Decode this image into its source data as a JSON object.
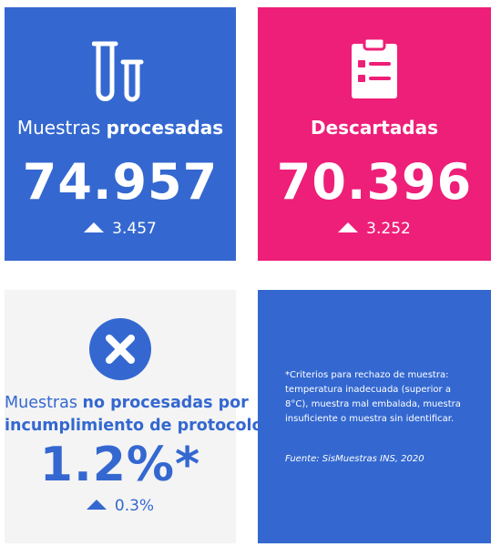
{
  "cards": {
    "processed": {
      "title_prefix": "Muestras ",
      "title_bold": "procesadas",
      "value": "74.957",
      "delta": "3.457",
      "icon": "test-tubes-icon",
      "color": "#3468d0"
    },
    "discarded": {
      "title_bold": "Descartadas",
      "value": "70.396",
      "delta": "3.252",
      "icon": "clipboard-checklist-icon",
      "color": "#ee1f78"
    },
    "not_processed": {
      "line1_prefix": "Muestras ",
      "line1_bold": "no procesadas por",
      "line2_bold": "incumplimiento de protocolo",
      "value": "1.2%*",
      "delta": "0.3%",
      "icon": "x-circle-icon",
      "color": "#3468d0"
    },
    "notes": {
      "criteria": "*Criterios para rechazo de muestra: temperatura inadecuada (superior a 8°C), muestra mal embalada, muestra insuficiente o muestra sin identificar.",
      "source": "Fuente: SisMuestras INS, 2020",
      "color": "#3468d0"
    }
  }
}
